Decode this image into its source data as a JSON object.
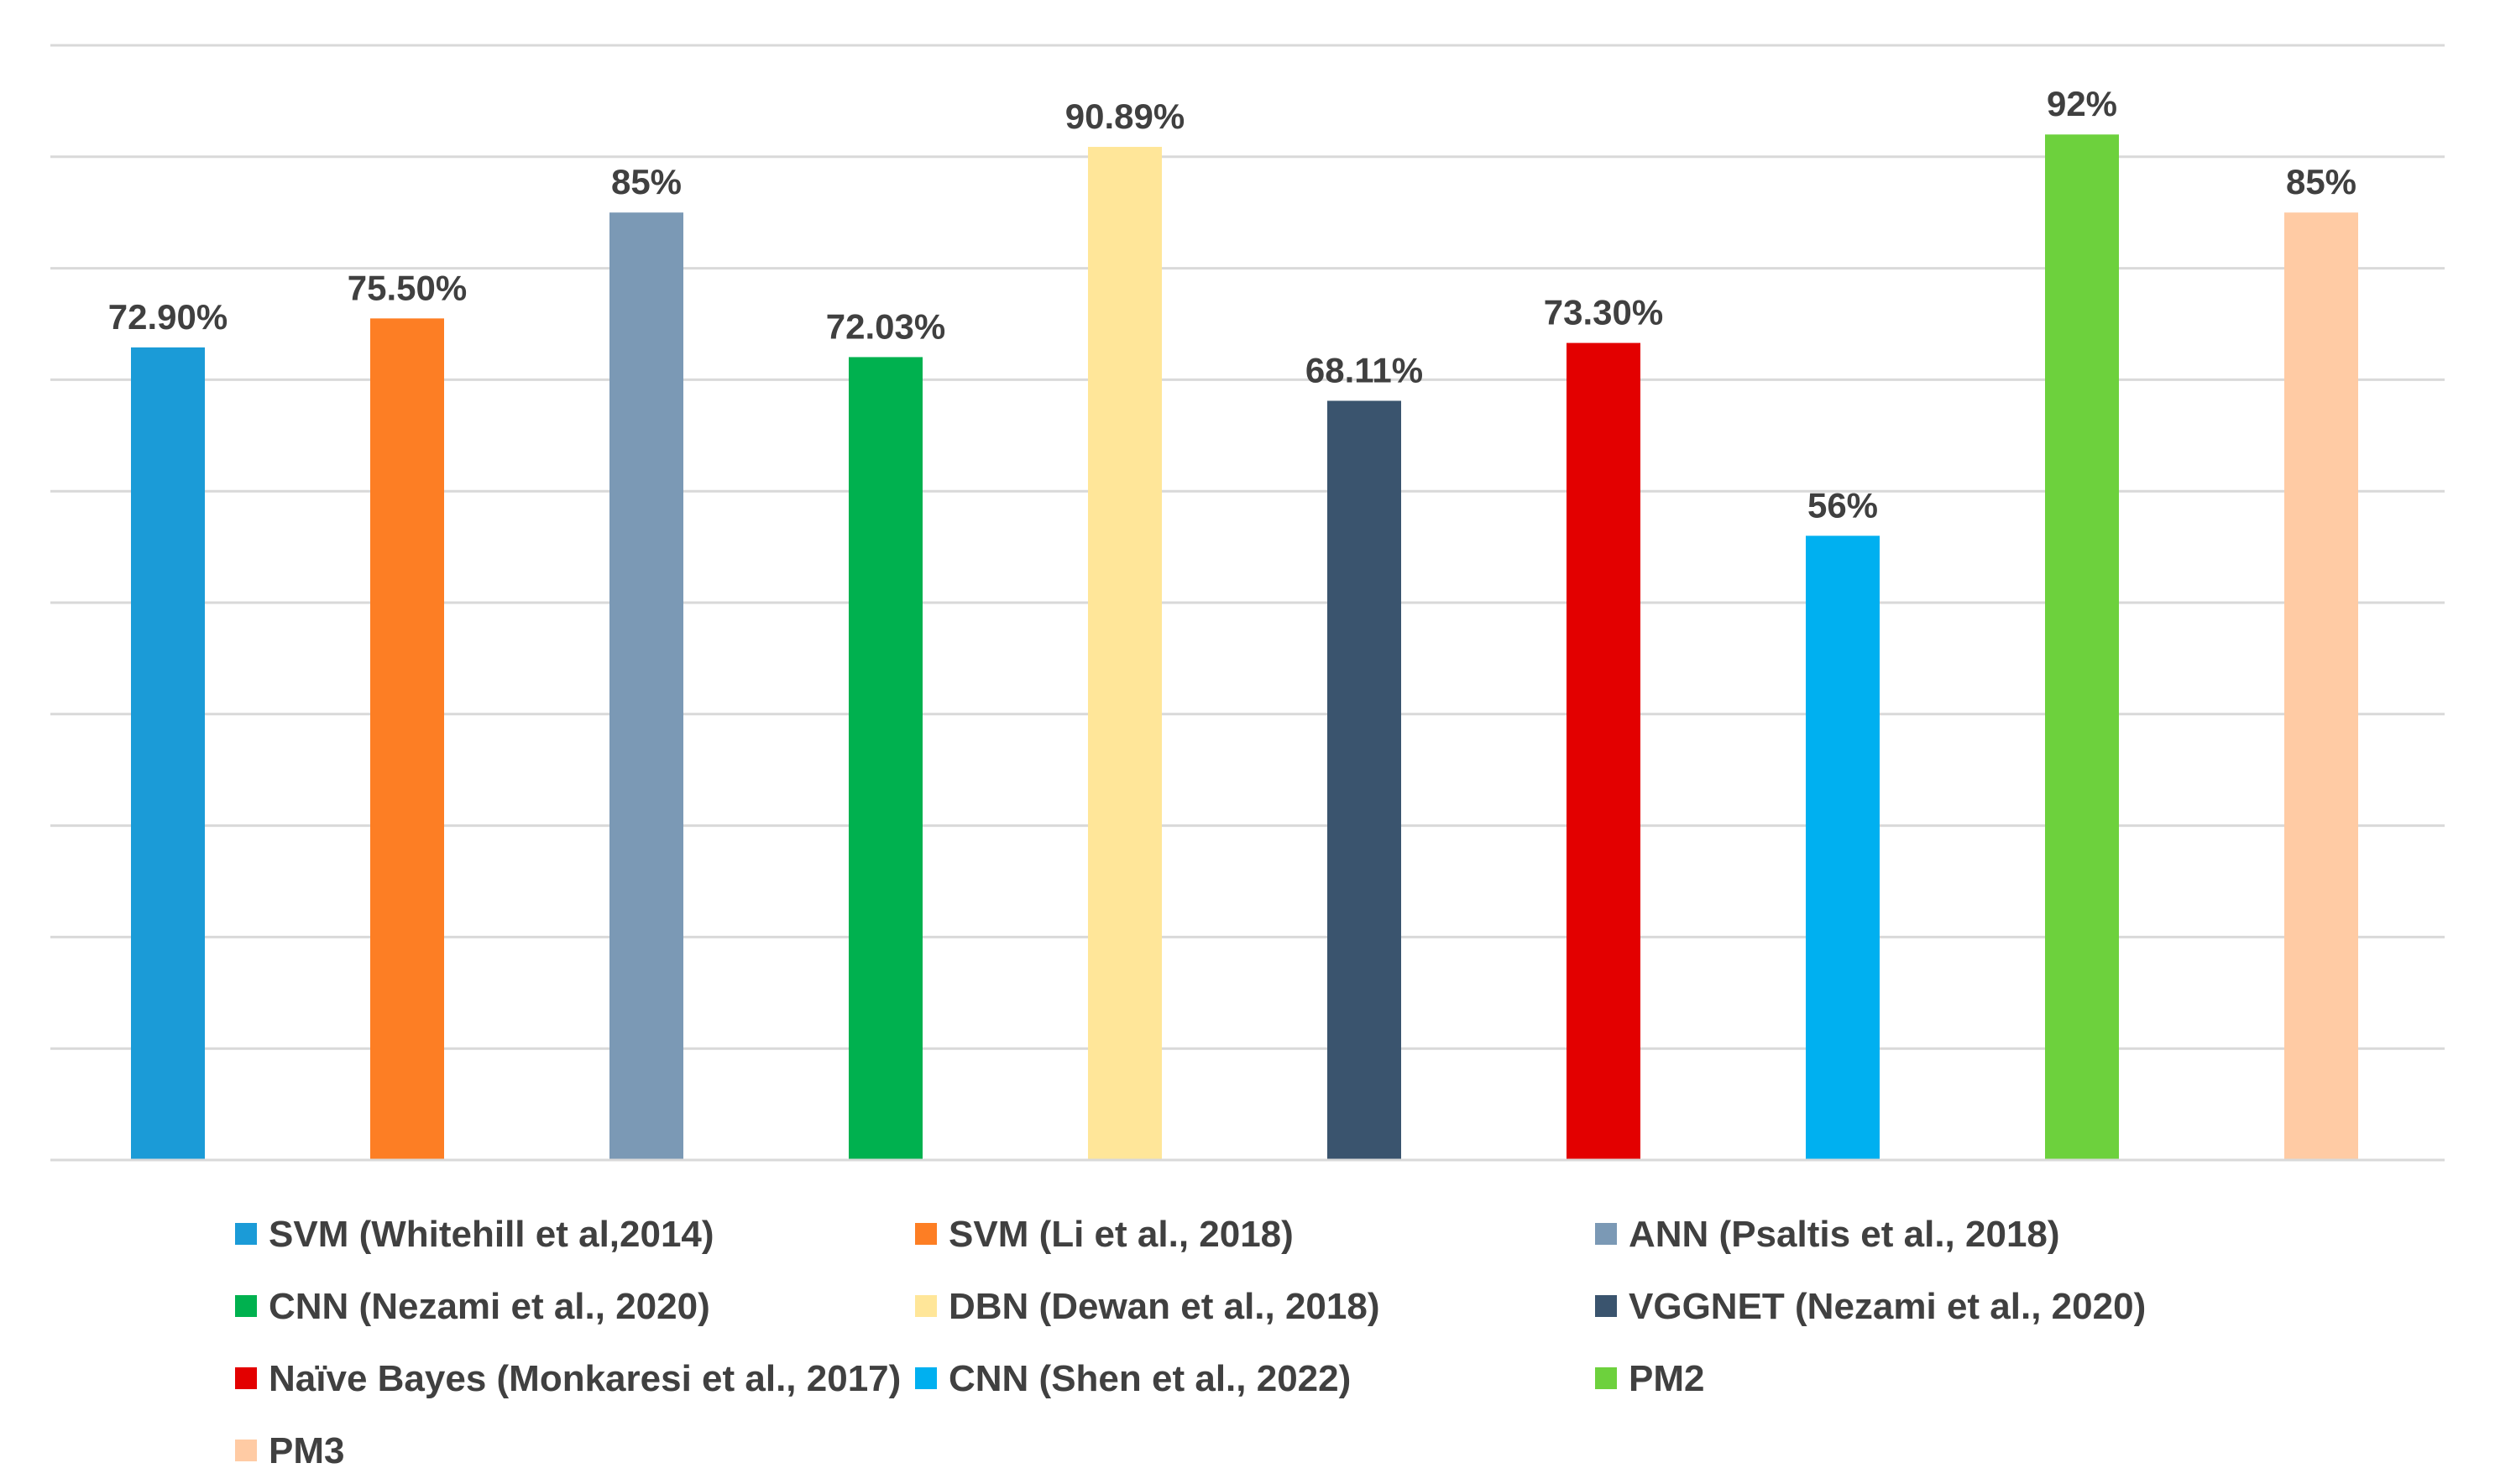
{
  "chart_data": {
    "type": "bar",
    "title": "",
    "xlabel": "",
    "ylabel": "",
    "ylim": [
      0,
      100
    ],
    "grid": true,
    "legend_position": "bottom",
    "series": [
      {
        "name": "SVM (Whitehill et al,2014)",
        "value": 72.9,
        "label": "72.90%",
        "color": "#1b9bd7"
      },
      {
        "name": "SVM (Li et al., 2018)",
        "value": 75.5,
        "label": "75.50%",
        "color": "#fd7e24"
      },
      {
        "name": "ANN (Psaltis et al., 2018)",
        "value": 85,
        "label": "85%",
        "color": "#7b99b5"
      },
      {
        "name": "CNN (Nezami et al., 2020)",
        "value": 72.03,
        "label": "72.03%",
        "color": "#00b14f"
      },
      {
        "name": "DBN (Dewan et al., 2018)",
        "value": 90.89,
        "label": "90.89%",
        "color": "#ffe699"
      },
      {
        "name": "VGGNET (Nezami et al., 2020)",
        "value": 68.11,
        "label": "68.11%",
        "color": "#3a546e"
      },
      {
        "name": "Naïve Bayes (Monkaresi et al., 2017)",
        "value": 73.3,
        "label": "73.30%",
        "color": "#e30000"
      },
      {
        "name": "CNN (Shen et al., 2022)",
        "value": 56,
        "label": "56%",
        "color": "#00b0f0"
      },
      {
        "name": "PM2",
        "value": 92,
        "label": "92%",
        "color": "#6dd13d"
      },
      {
        "name": "PM3",
        "value": 85,
        "label": "85%",
        "color": "#ffcba4"
      }
    ]
  }
}
